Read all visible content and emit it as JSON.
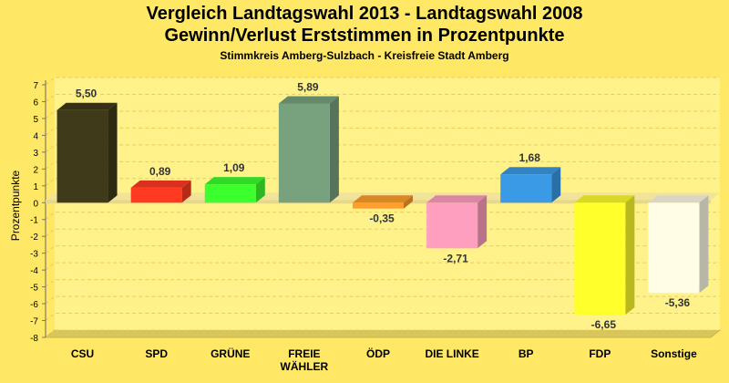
{
  "chart_data": {
    "type": "bar",
    "title": "Vergleich Landtagswahl 2013 - Landtagswahl 2008",
    "subtitle": "Gewinn/Verlust Erststimmen in Prozentpunkte",
    "caption": "Stimmkreis Amberg-Sulzbach - Kreisfreie Stadt Amberg",
    "xlabel": "",
    "ylabel": "Prozentpunkte",
    "ylim": [
      -8,
      7
    ],
    "yticks": [
      "7",
      "6",
      "5",
      "4",
      "3",
      "2",
      "1",
      "0",
      "-1",
      "-2",
      "-3",
      "-4",
      "-5",
      "-6",
      "-7",
      "-8"
    ],
    "grid": true,
    "categories": [
      [
        "CSU"
      ],
      [
        "SPD"
      ],
      [
        "GRÜNE"
      ],
      [
        "FREIE",
        "WÄHLER"
      ],
      [
        "ÖDP"
      ],
      [
        "DIE LINKE"
      ],
      [
        "BP"
      ],
      [
        "FDP"
      ],
      [
        "Sonstige"
      ]
    ],
    "values": [
      5.5,
      0.89,
      1.09,
      5.89,
      -0.35,
      -2.71,
      1.68,
      -6.65,
      -5.36
    ],
    "value_labels": [
      "5,50",
      "0,89",
      "1,09",
      "5,89",
      "-0,35",
      "-2,71",
      "1,68",
      "-6,65",
      "-5,36"
    ],
    "colors": [
      "#3f3a1a",
      "#ff3a22",
      "#3cff2e",
      "#78a17e",
      "#ff9e2c",
      "#ff9fbf",
      "#3a9ae6",
      "#ffff2b",
      "#fffde6"
    ]
  }
}
